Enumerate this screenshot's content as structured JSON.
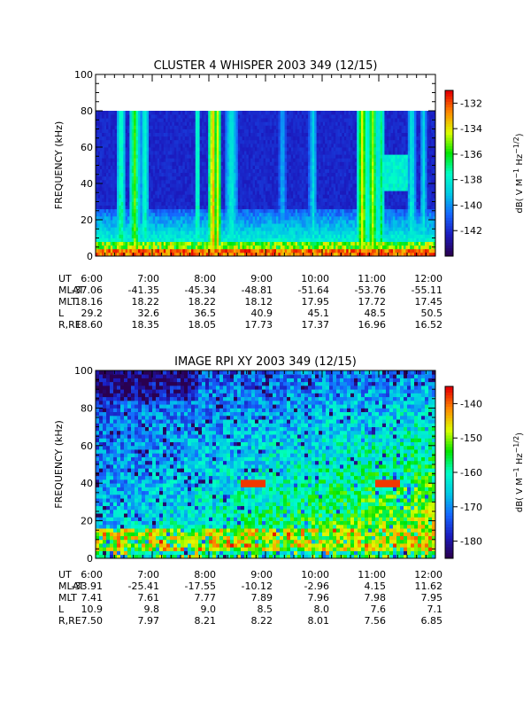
{
  "colors": {
    "colormap": [
      "#2a0050",
      "#1b1bbf",
      "#1566ff",
      "#00c8e6",
      "#00ffc8",
      "#00e600",
      "#dcff00",
      "#ff8c00",
      "#e60000"
    ],
    "background": "#ffffff",
    "axis": "#000000"
  },
  "chart_data": [
    {
      "type": "heatmap",
      "title": "CLUSTER 4 WHISPER 2003 349 (12/15)",
      "ylabel": "FREQUENCY (kHz)",
      "ylim": [
        0,
        100
      ],
      "y_ticks": [
        "0",
        "20",
        "40",
        "60",
        "80",
        "100"
      ],
      "x_tick_labels": [
        "6:00",
        "7:00",
        "8:00",
        "9:00",
        "10:00",
        "11:00",
        "12:00"
      ],
      "data_max_frequency_khz": 80,
      "colorbar": {
        "label": "dB( V M⁻¹ Hz⁻¹ᐟ²)",
        "label_parts": [
          "dB( V M",
          "−1",
          " Hz",
          "−1/2",
          ")"
        ],
        "range": [
          -144,
          -131
        ],
        "ticks": [
          "-132",
          "-134",
          "-136",
          "-138",
          "-140",
          "-142"
        ]
      },
      "ephemeris": {
        "rows": [
          {
            "label": "UT",
            "values": [
              "6:00",
              "7:00",
              "8:00",
              "9:00",
              "10:00",
              "11:00",
              "12:00"
            ]
          },
          {
            "label": "MLAT",
            "values": [
              "-37.06",
              "-41.35",
              "-45.34",
              "-48.81",
              "-51.64",
              "-53.76",
              "-55.11"
            ]
          },
          {
            "label": "MLT",
            "values": [
              "18.16",
              "18.22",
              "18.22",
              "18.12",
              "17.95",
              "17.72",
              "17.45"
            ]
          },
          {
            "label": "L",
            "values": [
              "29.2",
              "32.6",
              "36.5",
              "40.9",
              "45.1",
              "48.5",
              "50.5"
            ]
          },
          {
            "label": "R,RE",
            "values": [
              "18.60",
              "18.35",
              "18.05",
              "17.73",
              "17.37",
              "16.96",
              "16.52"
            ]
          }
        ]
      }
    },
    {
      "type": "heatmap",
      "title": "IMAGE RPI XY 2003 349 (12/15)",
      "ylabel": "FREQUENCY (kHz)",
      "ylim": [
        0,
        100
      ],
      "y_ticks": [
        "0",
        "20",
        "40",
        "60",
        "80",
        "100"
      ],
      "x_tick_labels": [
        "6:00",
        "7:00",
        "8:00",
        "9:00",
        "10:00",
        "11:00",
        "12:00"
      ],
      "data_max_frequency_khz": 100,
      "colorbar": {
        "label": "dB( V M⁻¹ Hz⁻¹ᐟ²)",
        "label_parts": [
          "dB( V M",
          "−1",
          " Hz",
          "−1/2",
          ")"
        ],
        "range": [
          -185,
          -135
        ],
        "ticks": [
          "-140",
          "-150",
          "-160",
          "-170",
          "-180"
        ]
      },
      "ephemeris": {
        "rows": [
          {
            "label": "UT",
            "values": [
              "6:00",
              "7:00",
              "8:00",
              "9:00",
              "10:00",
              "11:00",
              "12:00"
            ]
          },
          {
            "label": "MLAT",
            "values": [
              "-33.91",
              "-25.41",
              "-17.55",
              "-10.12",
              "-2.96",
              "4.15",
              "11.62"
            ]
          },
          {
            "label": "MLT",
            "values": [
              "7.41",
              "7.61",
              "7.77",
              "7.89",
              "7.96",
              "7.98",
              "7.95"
            ]
          },
          {
            "label": "L",
            "values": [
              "10.9",
              "9.8",
              "9.0",
              "8.5",
              "8.0",
              "7.6",
              "7.1"
            ]
          },
          {
            "label": "R,RE",
            "values": [
              "7.50",
              "7.97",
              "8.21",
              "8.22",
              "8.01",
              "7.56",
              "6.85"
            ]
          }
        ]
      }
    }
  ]
}
